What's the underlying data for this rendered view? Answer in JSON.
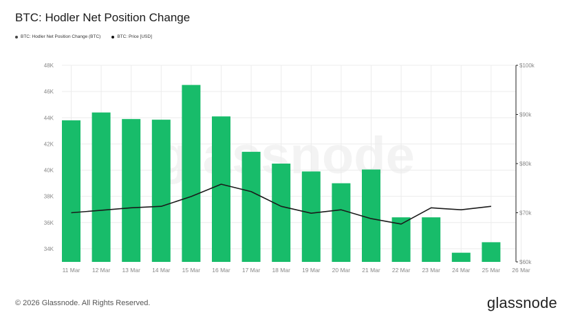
{
  "header": {
    "title": "BTC: Hodler Net Position Change"
  },
  "legend": [
    {
      "label": "BTC: Hodler Net Position Change (BTC)",
      "color": "#444444"
    },
    {
      "label": "BTC: Price [USD]",
      "color": "#111111"
    }
  ],
  "watermark": "glassnode",
  "footer": {
    "copyright": "© 2026 Glassnode. All Rights Reserved.",
    "brand": "glassnode"
  },
  "colors": {
    "bar": "#18bc6a",
    "line": "#1a1a1a",
    "grid": "#ececec"
  },
  "chart_data": {
    "type": "bar",
    "categories": [
      "11 Mar",
      "12 Mar",
      "13 Mar",
      "14 Mar",
      "15 Mar",
      "16 Mar",
      "17 Mar",
      "18 Mar",
      "19 Mar",
      "20 Mar",
      "21 Mar",
      "22 Mar",
      "23 Mar",
      "24 Mar",
      "25 Mar"
    ],
    "x_tick_labels": [
      "11 Mar",
      "12 Mar",
      "13 Mar",
      "14 Mar",
      "15 Mar",
      "16 Mar",
      "17 Mar",
      "18 Mar",
      "19 Mar",
      "20 Mar",
      "21 Mar",
      "22 Mar",
      "23 Mar",
      "24 Mar",
      "25 Mar",
      "26 Mar"
    ],
    "series": [
      {
        "name": "BTC: Hodler Net Position Change (BTC)",
        "axis": "left",
        "kind": "bar",
        "values": [
          43800,
          44400,
          43900,
          43850,
          46500,
          44100,
          41400,
          40500,
          39900,
          39000,
          40050,
          36400,
          36400,
          33700,
          34500
        ]
      },
      {
        "name": "BTC: Price [USD]",
        "axis": "right",
        "kind": "line",
        "values": [
          70000,
          70500,
          71000,
          71300,
          73300,
          75800,
          74300,
          71300,
          69900,
          70600,
          68800,
          67700,
          71000,
          70600,
          71300
        ]
      }
    ],
    "y_left": {
      "min": 33000,
      "max": 48000,
      "ticks": [
        34000,
        36000,
        38000,
        40000,
        42000,
        44000,
        46000,
        48000
      ],
      "tick_labels": [
        "34K",
        "36K",
        "38K",
        "40K",
        "42K",
        "44K",
        "46K",
        "48K"
      ]
    },
    "y_right": {
      "min": 60000,
      "max": 100000,
      "ticks": [
        60000,
        70000,
        80000,
        90000,
        100000
      ],
      "tick_labels": [
        "$60k",
        "$70k",
        "$80k",
        "$90k",
        "$100k"
      ]
    },
    "grid": true,
    "legend_position": "top-left"
  }
}
